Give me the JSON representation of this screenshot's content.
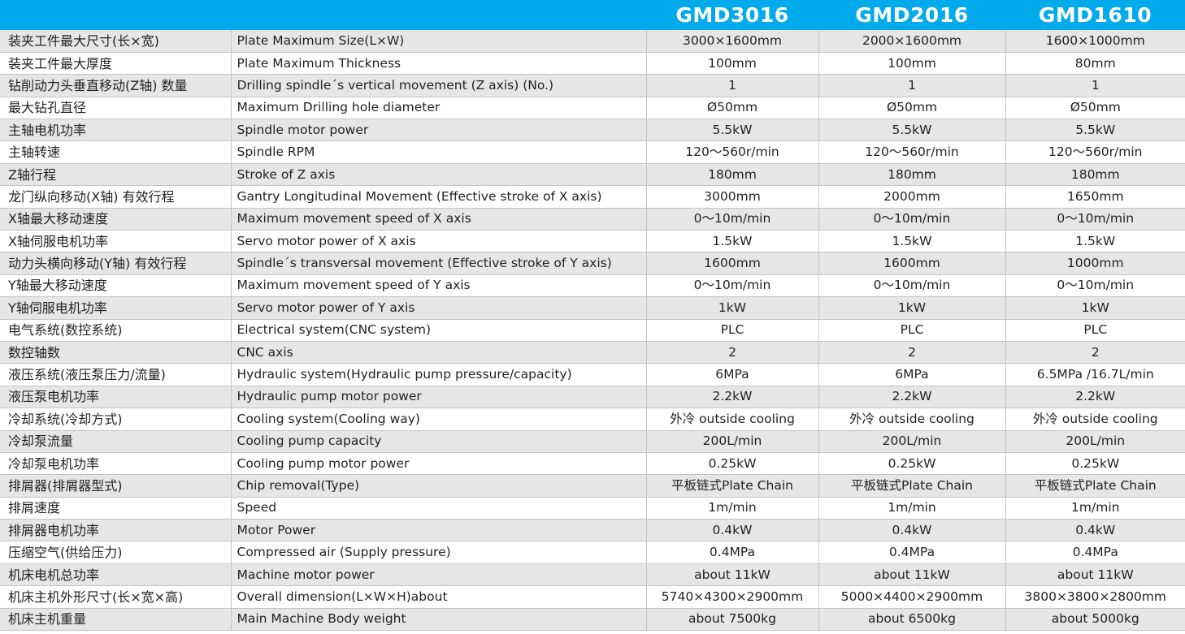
{
  "header": {
    "models": [
      "GMD3016",
      "GMD2016",
      "GMD1610"
    ]
  },
  "colors": {
    "header_bg": "#00aaeb",
    "row_alt": "#e6e6e6"
  },
  "rows": [
    {
      "cn": "装夹工件最大尺寸(长×宽)",
      "en": "Plate Maximum Size(L×W)",
      "values": [
        "3000×1600mm",
        "2000×1600mm",
        "1600×1000mm"
      ]
    },
    {
      "cn": "装夹工件最大厚度",
      "en": "Plate Maximum Thickness",
      "values": [
        "100mm",
        "100mm",
        "80mm"
      ]
    },
    {
      "cn": "钻削动力头垂直移动(Z轴)  数量",
      "en": "Drilling spindle´s vertical movement (Z axis) (No.)",
      "values": [
        "1",
        "1",
        "1"
      ]
    },
    {
      "cn": "最大钻孔直径",
      "en": "Maximum Drilling hole diameter",
      "values": [
        "Ø50mm",
        "Ø50mm",
        "Ø50mm"
      ]
    },
    {
      "cn": "主轴电机功率",
      "en": "Spindle motor power",
      "values": [
        "5.5kW",
        "5.5kW",
        "5.5kW"
      ]
    },
    {
      "cn": "主轴转速",
      "en": "Spindle RPM",
      "values": [
        "120～560r/min",
        "120～560r/min",
        "120～560r/min"
      ]
    },
    {
      "cn": "Z轴行程",
      "en": "Stroke of Z axis",
      "values": [
        "180mm",
        "180mm",
        "180mm"
      ]
    },
    {
      "cn": "龙门纵向移动(X轴) 有效行程",
      "en": "Gantry Longitudinal Movement  (Effective stroke of X axis)",
      "values": [
        "3000mm",
        "2000mm",
        "1650mm"
      ]
    },
    {
      "cn": "X轴最大移动速度",
      "en": "Maximum movement speed of X axis",
      "values": [
        "0～10m/min",
        "0～10m/min",
        "0～10m/min"
      ]
    },
    {
      "cn": "X轴伺服电机功率",
      "en": "Servo motor power of X axis",
      "values": [
        "1.5kW",
        "1.5kW",
        "1.5kW"
      ]
    },
    {
      "cn": "动力头横向移动(Y轴) 有效行程",
      "en": "Spindle´s transversal movement (Effective stroke of Y axis)",
      "values": [
        "1600mm",
        "1600mm",
        "1000mm"
      ]
    },
    {
      "cn": "Y轴最大移动速度",
      "en": "Maximum movement speed of Y axis",
      "values": [
        "0～10m/min",
        "0～10m/min",
        "0～10m/min"
      ]
    },
    {
      "cn": "Y轴伺服电机功率",
      "en": "Servo motor power of Y axis",
      "values": [
        "1kW",
        "1kW",
        "1kW"
      ]
    },
    {
      "cn": "电气系统(数控系统)",
      "en": "Electrical system(CNC system)",
      "values": [
        "PLC",
        "PLC",
        "PLC"
      ]
    },
    {
      "cn": "数控轴数",
      "en": "CNC axis",
      "values": [
        "2",
        "2",
        "2"
      ]
    },
    {
      "cn": "液压系统(液压泵压力/流量)",
      "en": "Hydraulic system(Hydraulic pump pressure/capacity)",
      "values": [
        "6MPa",
        "6MPa",
        "6.5MPa /16.7L/min"
      ]
    },
    {
      "cn": "液压泵电机功率",
      "en": "Hydraulic pump motor power",
      "values": [
        "2.2kW",
        "2.2kW",
        "2.2kW"
      ]
    },
    {
      "cn": "冷却系统(冷却方式)",
      "en": "Cooling system(Cooling way)",
      "values": [
        "外冷 outside cooling",
        "外冷 outside cooling",
        "外冷 outside cooling"
      ]
    },
    {
      "cn": "冷却泵流量",
      "en": "Cooling pump capacity",
      "values": [
        "200L/min",
        "200L/min",
        "200L/min"
      ]
    },
    {
      "cn": "冷却泵电机功率",
      "en": "Cooling pump motor power",
      "values": [
        "0.25kW",
        "0.25kW",
        "0.25kW"
      ]
    },
    {
      "cn": "排屑器(排屑器型式)",
      "en": "Chip removal(Type)",
      "values": [
        "平板链式Plate Chain",
        "平板链式Plate Chain",
        "平板链式Plate Chain"
      ]
    },
    {
      "cn": "排屑速度",
      "en": "Speed",
      "values": [
        "1m/min",
        "1m/min",
        "1m/min"
      ]
    },
    {
      "cn": "排屑器电机功率",
      "en": "Motor Power",
      "values": [
        "0.4kW",
        "0.4kW",
        "0.4kW"
      ]
    },
    {
      "cn": "压缩空气(供给压力)",
      "en": "Compressed air (Supply pressure)",
      "values": [
        "0.4MPa",
        "0.4MPa",
        "0.4MPa"
      ]
    },
    {
      "cn": "机床电机总功率",
      "en": "Machine motor power",
      "values": [
        "about 11kW",
        "about 11kW",
        "about 11kW"
      ]
    },
    {
      "cn": "机床主机外形尺寸(长×宽×高)",
      "en": "Overall dimension(L×W×H)about",
      "values": [
        "5740×4300×2900mm",
        "5000×4400×2900mm",
        "3800×3800×2800mm"
      ]
    },
    {
      "cn": "机床主机重量",
      "en": "Main Machine Body weight",
      "values": [
        "about 7500kg",
        "about 6500kg",
        "about 5000kg"
      ]
    }
  ]
}
